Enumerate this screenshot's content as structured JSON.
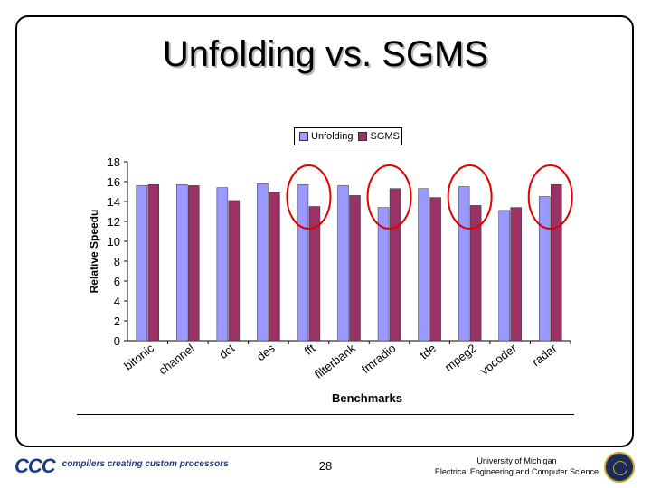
{
  "slide": {
    "title": "Unfolding vs. SGMS",
    "page_number": "28",
    "footer_logo": "CCC",
    "footer_tagline": "compilers creating custom processors",
    "university_line1": "University of Michigan",
    "university_line2": "Electrical Engineering and Computer Science"
  },
  "chart_data": {
    "type": "bar",
    "categories": [
      "bitonic",
      "channel",
      "dct",
      "des",
      "fft",
      "filterbank",
      "fmradio",
      "tde",
      "mpeg2",
      "vocoder",
      "radar"
    ],
    "series": [
      {
        "name": "Unfolding",
        "color": "#9999ff",
        "values": [
          15.6,
          15.7,
          15.4,
          15.8,
          15.7,
          15.6,
          13.4,
          15.3,
          15.5,
          13.1,
          14.5
        ]
      },
      {
        "name": "SGMS",
        "color": "#993366",
        "values": [
          15.7,
          15.6,
          14.1,
          14.9,
          13.5,
          14.6,
          15.3,
          14.4,
          13.6,
          13.4,
          15.7
        ]
      }
    ],
    "ylim": [
      0,
      18
    ],
    "yticks": [
      "0",
      "2",
      "4",
      "6",
      "8",
      "10",
      "12",
      "14",
      "16",
      "18"
    ],
    "xlabel": "Benchmarks",
    "ylabel": "Relative Speedu",
    "legend_position": "top",
    "grid": false,
    "highlighted_categories": [
      "fft",
      "fmradio",
      "mpeg2",
      "radar"
    ],
    "highlight_color": "#e00000"
  }
}
